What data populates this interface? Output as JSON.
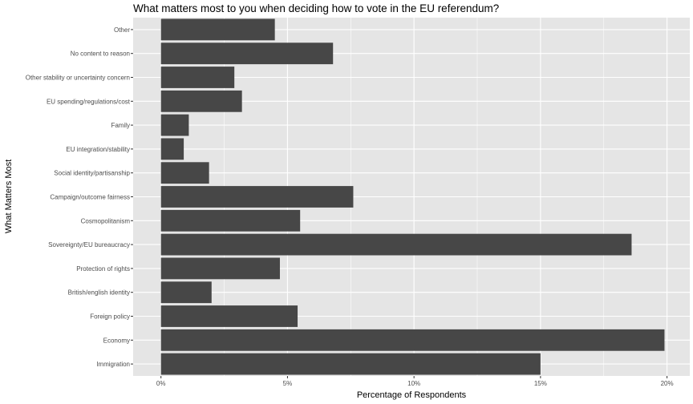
{
  "chart_data": {
    "type": "bar",
    "orientation": "horizontal",
    "title": "What matters most to you when deciding how to vote in the EU referendum?",
    "xlabel": "Percentage of Respondents",
    "ylabel": "What Matters Most",
    "categories": [
      "Immigration",
      "Economy",
      "Foreign policy",
      "British/english identity",
      "Protection of rights",
      "Sovereignty/EU bureaucracy",
      "Cosmopolitanism",
      "Campaign/outcome fairness",
      "Social identity/partisanship",
      "EU integration/stability",
      "Family",
      "EU spending/regulations/cost",
      "Other stability or uncertainty concern",
      "No content to reason",
      "Other"
    ],
    "values": [
      15.0,
      19.9,
      5.4,
      2.0,
      4.7,
      18.6,
      5.5,
      7.6,
      1.9,
      0.9,
      1.1,
      3.2,
      2.9,
      6.8,
      4.5
    ],
    "xlim": [
      -1.1,
      20.9
    ],
    "xticks": [
      0,
      5,
      10,
      15,
      20
    ],
    "xtick_labels": [
      "0%",
      "5%",
      "10%",
      "15%",
      "20%"
    ],
    "grid": true,
    "bar_color": "#474747",
    "panel_color": "#e5e5e5",
    "grid_color": "#ffffff"
  }
}
